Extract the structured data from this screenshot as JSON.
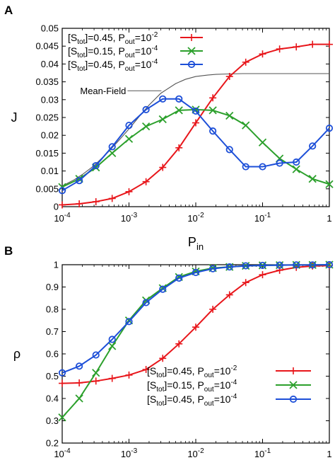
{
  "chart_data": [
    {
      "panel": "A",
      "type": "line",
      "xscale": "log",
      "xlim": [
        0.0001,
        1
      ],
      "ylim": [
        0,
        0.05
      ],
      "x_ticks": [
        {
          "v": 0.0001,
          "base": "10",
          "exp": "-4"
        },
        {
          "v": 0.001,
          "base": "10",
          "exp": "-3"
        },
        {
          "v": 0.01,
          "base": "10",
          "exp": "-2"
        },
        {
          "v": 0.1,
          "base": "10",
          "exp": "-1"
        },
        {
          "v": 1,
          "base": "1",
          "exp": ""
        }
      ],
      "y_ticks": [
        {
          "v": 0,
          "label": "0"
        },
        {
          "v": 0.005,
          "label": "0.005"
        },
        {
          "v": 0.01,
          "label": "0.01"
        },
        {
          "v": 0.015,
          "label": "0.015"
        },
        {
          "v": 0.02,
          "label": "0.02"
        },
        {
          "v": 0.025,
          "label": "0.025"
        },
        {
          "v": 0.03,
          "label": "0.03"
        },
        {
          "v": 0.035,
          "label": "0.035"
        },
        {
          "v": 0.04,
          "label": "0.04"
        },
        {
          "v": 0.045,
          "label": "0.045"
        },
        {
          "v": 0.05,
          "label": "0.05"
        }
      ],
      "xlabel": {
        "main": "P",
        "sub": "in"
      },
      "ylabel": {
        "main": "J",
        "sub": ""
      },
      "legend_position": "top-left",
      "mean_field": {
        "label": "Mean-Field",
        "color": "#555555",
        "x": [
          0.0001,
          0.00015,
          0.0002,
          0.0003,
          0.0005,
          0.0007,
          0.001,
          0.0015,
          0.002,
          0.003,
          0.005,
          0.007,
          0.01,
          0.015,
          0.02,
          0.03,
          0.05,
          0.1,
          0.2,
          0.5,
          1
        ],
        "y": [
          0.0058,
          0.0075,
          0.009,
          0.0115,
          0.0155,
          0.0185,
          0.0218,
          0.0258,
          0.0285,
          0.0318,
          0.0345,
          0.0357,
          0.0365,
          0.0369,
          0.0371,
          0.0372,
          0.0373,
          0.0373,
          0.0373,
          0.0373,
          0.0373
        ]
      },
      "series": [
        {
          "label_s": "tot",
          "label_mid": "]=0.45, P",
          "label_p": "out",
          "label_eq": "=10",
          "label_exp": "-2",
          "color": "#e8161b",
          "marker": "plus",
          "x": [
            0.0001,
            0.00018,
            0.00032,
            0.00056,
            0.001,
            0.0018,
            0.0032,
            0.0056,
            0.01,
            0.018,
            0.032,
            0.056,
            0.1,
            0.18,
            0.32,
            0.56,
            1
          ],
          "y": [
            0.0005,
            0.0008,
            0.0014,
            0.0023,
            0.0042,
            0.007,
            0.011,
            0.0165,
            0.0235,
            0.0305,
            0.0365,
            0.0405,
            0.0428,
            0.0442,
            0.0448,
            0.0455,
            0.0455
          ]
        },
        {
          "label_s": "tot",
          "label_mid": "]=0.15, P",
          "label_p": "out",
          "label_eq": "=10",
          "label_exp": "-4",
          "color": "#2ca02c",
          "marker": "x",
          "x": [
            0.0001,
            0.00018,
            0.00032,
            0.00056,
            0.001,
            0.0018,
            0.0032,
            0.0056,
            0.01,
            0.018,
            0.032,
            0.056,
            0.1,
            0.18,
            0.32,
            0.56,
            1
          ],
          "y": [
            0.0055,
            0.0078,
            0.011,
            0.015,
            0.019,
            0.0225,
            0.0245,
            0.027,
            0.0272,
            0.027,
            0.0255,
            0.0228,
            0.018,
            0.0135,
            0.0105,
            0.0078,
            0.0063
          ]
        },
        {
          "label_s": "tot",
          "label_mid": "]=0.45, P",
          "label_p": "out",
          "label_eq": "=10",
          "label_exp": "-4",
          "color": "#1d4fd8",
          "marker": "circle",
          "x": [
            0.0001,
            0.00018,
            0.00032,
            0.00056,
            0.001,
            0.0018,
            0.0032,
            0.0056,
            0.01,
            0.018,
            0.032,
            0.056,
            0.1,
            0.18,
            0.32,
            0.56,
            1
          ],
          "y": [
            0.0045,
            0.0073,
            0.0115,
            0.0168,
            0.0228,
            0.0272,
            0.0302,
            0.0302,
            0.0268,
            0.0212,
            0.016,
            0.0112,
            0.0112,
            0.0122,
            0.0125,
            0.017,
            0.022
          ]
        }
      ]
    },
    {
      "panel": "B",
      "type": "line",
      "xscale": "log",
      "xlim": [
        0.0001,
        1
      ],
      "ylim": [
        0.2,
        1
      ],
      "x_ticks": [
        {
          "v": 0.0001,
          "base": "10",
          "exp": "-4"
        },
        {
          "v": 0.001,
          "base": "10",
          "exp": "-3"
        },
        {
          "v": 0.01,
          "base": "10",
          "exp": "-2"
        },
        {
          "v": 0.1,
          "base": "10",
          "exp": "-1"
        },
        {
          "v": 1,
          "base": "1",
          "exp": ""
        }
      ],
      "y_ticks": [
        {
          "v": 0.2,
          "label": "0.2"
        },
        {
          "v": 0.3,
          "label": "0.3"
        },
        {
          "v": 0.4,
          "label": "0.4"
        },
        {
          "v": 0.5,
          "label": "0.5"
        },
        {
          "v": 0.6,
          "label": "0.6"
        },
        {
          "v": 0.7,
          "label": "0.7"
        },
        {
          "v": 0.8,
          "label": "0.8"
        },
        {
          "v": 0.9,
          "label": "0.9"
        },
        {
          "v": 1,
          "label": "1"
        }
      ],
      "xlabel": {
        "main": "P",
        "sub": "in"
      },
      "ylabel": {
        "main": "ρ",
        "sub": ""
      },
      "legend_position": "bottom-right",
      "series": [
        {
          "label_s": "tot",
          "label_mid": "]=0.45, P",
          "label_p": "out",
          "label_eq": "=10",
          "label_exp": "-2",
          "color": "#e8161b",
          "marker": "plus",
          "x": [
            0.0001,
            0.00018,
            0.00032,
            0.00056,
            0.001,
            0.0018,
            0.0032,
            0.0056,
            0.01,
            0.018,
            0.032,
            0.056,
            0.1,
            0.18,
            0.32,
            0.56,
            1
          ],
          "y": [
            0.468,
            0.47,
            0.478,
            0.49,
            0.505,
            0.53,
            0.58,
            0.645,
            0.72,
            0.8,
            0.865,
            0.92,
            0.955,
            0.975,
            0.988,
            0.994,
            0.996
          ]
        },
        {
          "label_s": "tot",
          "label_mid": "]=0.15, P",
          "label_p": "out",
          "label_eq": "=10",
          "label_exp": "-4",
          "color": "#2ca02c",
          "marker": "x",
          "x": [
            0.0001,
            0.00018,
            0.00032,
            0.00056,
            0.001,
            0.0018,
            0.0032,
            0.0056,
            0.01,
            0.018,
            0.032,
            0.056,
            0.1,
            0.18,
            0.32,
            0.56,
            1
          ],
          "y": [
            0.315,
            0.4,
            0.515,
            0.635,
            0.75,
            0.84,
            0.895,
            0.945,
            0.97,
            0.985,
            0.99,
            0.995,
            0.997,
            0.998,
            0.999,
            0.999,
            1.0
          ]
        },
        {
          "label_s": "tot",
          "label_mid": "]=0.45, P",
          "label_p": "out",
          "label_eq": "=10",
          "label_exp": "-4",
          "color": "#1d4fd8",
          "marker": "circle",
          "x": [
            0.0001,
            0.00018,
            0.00032,
            0.00056,
            0.001,
            0.0018,
            0.0032,
            0.0056,
            0.01,
            0.018,
            0.032,
            0.056,
            0.1,
            0.18,
            0.32,
            0.56,
            1
          ],
          "y": [
            0.515,
            0.545,
            0.595,
            0.665,
            0.745,
            0.83,
            0.89,
            0.94,
            0.965,
            0.982,
            0.99,
            0.995,
            0.997,
            0.998,
            0.999,
            0.999,
            1.0
          ]
        }
      ]
    }
  ]
}
